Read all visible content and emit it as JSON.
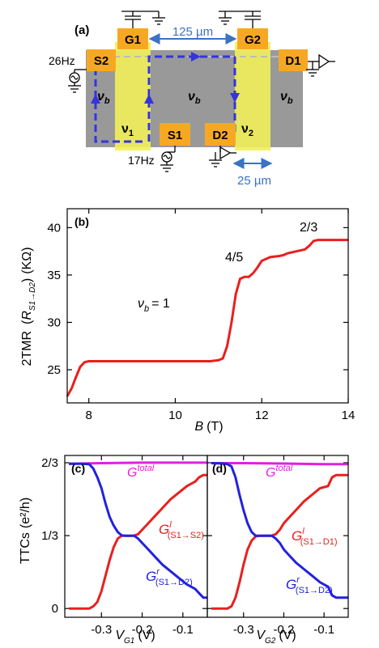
{
  "panel_a": {
    "label": "(a)",
    "contacts": {
      "g1": "G1",
      "g2": "G2",
      "s2": "S2",
      "d1": "D1",
      "s1": "S1",
      "d2": "D2"
    },
    "dimension_top": "125 µm",
    "dimension_bottom": "25 µm",
    "freq_s2": "26Hz",
    "freq_s1": "17Hz",
    "nu_b": "ν",
    "nu_b_sub": "b",
    "nu_1": "ν",
    "nu_1_sub": "1",
    "nu_2": "ν",
    "nu_2_sub": "2",
    "colors": {
      "mesa": "#999999",
      "gate": "#f2f05a",
      "contact": "#f7a823",
      "edge": "#3434e0",
      "dimension": "#3a72c4"
    }
  },
  "chart_data": [
    {
      "type": "line",
      "panel": "(b)",
      "ylabel_main": "2TMR",
      "ylabel_R": "R",
      "ylabel_sub": "S1→D2",
      "ylabel_unit": "(KΩ)",
      "xlabel_main": "B",
      "xlabel_unit": "(T)",
      "xlim": [
        7.5,
        14
      ],
      "ylim": [
        21.5,
        42
      ],
      "xticks": [
        8,
        10,
        12,
        14
      ],
      "yticks": [
        25,
        30,
        35,
        40
      ],
      "annotations": {
        "nu": "ν",
        "nu_sub": "b",
        "nu_eq": "= 1",
        "frac45": "4/5",
        "frac23": "2/3"
      },
      "series": [
        {
          "color": "#e8201e",
          "x": [
            7.5,
            7.6,
            7.7,
            7.8,
            7.9,
            8.0,
            8.2,
            9.0,
            10.0,
            10.8,
            11.0,
            11.1,
            11.2,
            11.3,
            11.4,
            11.5,
            11.6,
            11.7,
            11.8,
            11.9,
            12.0,
            12.2,
            12.4,
            12.5,
            12.6,
            12.7,
            12.8,
            13.0,
            13.1,
            13.2,
            13.3,
            13.5,
            14.0
          ],
          "y": [
            22.2,
            23.0,
            24.2,
            25.3,
            25.8,
            25.9,
            25.9,
            25.9,
            25.9,
            25.9,
            26.0,
            26.2,
            27.5,
            30.0,
            33.0,
            34.6,
            34.8,
            34.8,
            35.2,
            35.8,
            36.5,
            36.9,
            37.0,
            37.1,
            37.3,
            37.4,
            37.5,
            37.7,
            38.1,
            38.6,
            38.7,
            38.7,
            38.7
          ]
        }
      ]
    },
    {
      "type": "line",
      "panel": "(c)",
      "ylabel_main": "TTCs",
      "ylabel_unit": "(e²/h)",
      "xlabel_main": "V",
      "xlabel_sub": "G1",
      "xlabel_unit": "(V)",
      "xlim": [
        -0.39,
        -0.04
      ],
      "ylim": [
        -0.04,
        0.7
      ],
      "xticks": [
        "-0.3",
        "-0.2",
        "-0.1"
      ],
      "yticks": [
        "0",
        "1/3",
        "2/3"
      ],
      "labels": {
        "gtotal": "G",
        "gtotal_sup": "total",
        "gl": "G",
        "gl_sup": "l",
        "gl_sub": "(S1→S2)",
        "gr": "G",
        "gr_sup": "r",
        "gr_sub": "(S1→D2)"
      },
      "series": [
        {
          "name": "G^total",
          "color": "#e020e0",
          "x": [
            -0.38,
            -0.3,
            -0.2,
            -0.1,
            -0.04
          ],
          "y": [
            0.662,
            0.665,
            0.667,
            0.667,
            0.667
          ]
        },
        {
          "name": "G^l (S1→S2)",
          "color": "#e8201e",
          "x": [
            -0.38,
            -0.35,
            -0.33,
            -0.32,
            -0.31,
            -0.3,
            -0.29,
            -0.28,
            -0.27,
            -0.26,
            -0.25,
            -0.24,
            -0.23,
            -0.22,
            -0.21,
            -0.2,
            -0.19,
            -0.17,
            -0.15,
            -0.13,
            -0.11,
            -0.09,
            -0.08,
            -0.07,
            -0.06,
            -0.05,
            -0.04
          ],
          "y": [
            0.0,
            0.0,
            0.0,
            0.01,
            0.03,
            0.08,
            0.15,
            0.22,
            0.28,
            0.32,
            0.333,
            0.333,
            0.333,
            0.333,
            0.34,
            0.36,
            0.38,
            0.42,
            0.46,
            0.5,
            0.53,
            0.56,
            0.57,
            0.58,
            0.6,
            0.61,
            0.61
          ]
        },
        {
          "name": "G^r (S1→D2)",
          "color": "#2222dd",
          "x": [
            -0.38,
            -0.35,
            -0.33,
            -0.32,
            -0.31,
            -0.3,
            -0.29,
            -0.28,
            -0.27,
            -0.26,
            -0.25,
            -0.24,
            -0.23,
            -0.22,
            -0.21,
            -0.2,
            -0.19,
            -0.17,
            -0.15,
            -0.13,
            -0.11,
            -0.09,
            -0.08,
            -0.07,
            -0.06,
            -0.05,
            -0.04
          ],
          "y": [
            0.662,
            0.662,
            0.66,
            0.64,
            0.6,
            0.55,
            0.48,
            0.42,
            0.38,
            0.35,
            0.334,
            0.333,
            0.333,
            0.333,
            0.32,
            0.3,
            0.28,
            0.24,
            0.2,
            0.17,
            0.14,
            0.11,
            0.1,
            0.09,
            0.07,
            0.05,
            0.05
          ]
        }
      ]
    },
    {
      "type": "line",
      "panel": "(d)",
      "xlabel_main": "V",
      "xlabel_sub": "G2",
      "xlabel_unit": "(V)",
      "xlim": [
        -0.39,
        -0.04
      ],
      "ylim": [
        -0.04,
        0.7
      ],
      "xticks": [
        "-0.3",
        "-0.2",
        "-0.1"
      ],
      "labels": {
        "gtotal": "G",
        "gtotal_sup": "total",
        "gl": "G",
        "gl_sup": "l",
        "gl_sub": "(S1→D1)",
        "gr": "G",
        "gr_sup": "r",
        "gr_sub": "(S1→D2)"
      },
      "series": [
        {
          "name": "G^total",
          "color": "#e020e0",
          "x": [
            -0.38,
            -0.3,
            -0.2,
            -0.1,
            -0.04
          ],
          "y": [
            0.665,
            0.665,
            0.663,
            0.66,
            0.66
          ]
        },
        {
          "name": "G^l (S1→D1)",
          "color": "#e8201e",
          "x": [
            -0.38,
            -0.35,
            -0.34,
            -0.33,
            -0.32,
            -0.31,
            -0.3,
            -0.29,
            -0.28,
            -0.27,
            -0.26,
            -0.25,
            -0.24,
            -0.23,
            -0.22,
            -0.21,
            -0.2,
            -0.19,
            -0.17,
            -0.15,
            -0.13,
            -0.11,
            -0.09,
            -0.08,
            -0.07,
            -0.06,
            -0.05,
            -0.04
          ],
          "y": [
            0.0,
            0.0,
            0.0,
            0.01,
            0.05,
            0.12,
            0.2,
            0.27,
            0.31,
            0.33,
            0.333,
            0.333,
            0.333,
            0.333,
            0.34,
            0.36,
            0.39,
            0.41,
            0.45,
            0.49,
            0.52,
            0.55,
            0.56,
            0.6,
            0.61,
            0.61,
            0.61,
            0.61
          ]
        },
        {
          "name": "G^r (S1→D2)",
          "color": "#2222dd",
          "x": [
            -0.38,
            -0.35,
            -0.34,
            -0.33,
            -0.32,
            -0.31,
            -0.3,
            -0.29,
            -0.28,
            -0.27,
            -0.26,
            -0.25,
            -0.24,
            -0.23,
            -0.22,
            -0.21,
            -0.2,
            -0.19,
            -0.17,
            -0.15,
            -0.13,
            -0.11,
            -0.09,
            -0.08,
            -0.07,
            -0.06,
            -0.05,
            -0.04
          ],
          "y": [
            0.665,
            0.663,
            0.66,
            0.65,
            0.6,
            0.52,
            0.45,
            0.39,
            0.35,
            0.333,
            0.333,
            0.333,
            0.333,
            0.333,
            0.32,
            0.3,
            0.27,
            0.25,
            0.21,
            0.18,
            0.15,
            0.12,
            0.1,
            0.06,
            0.05,
            0.05,
            0.05,
            0.05
          ]
        }
      ]
    }
  ]
}
